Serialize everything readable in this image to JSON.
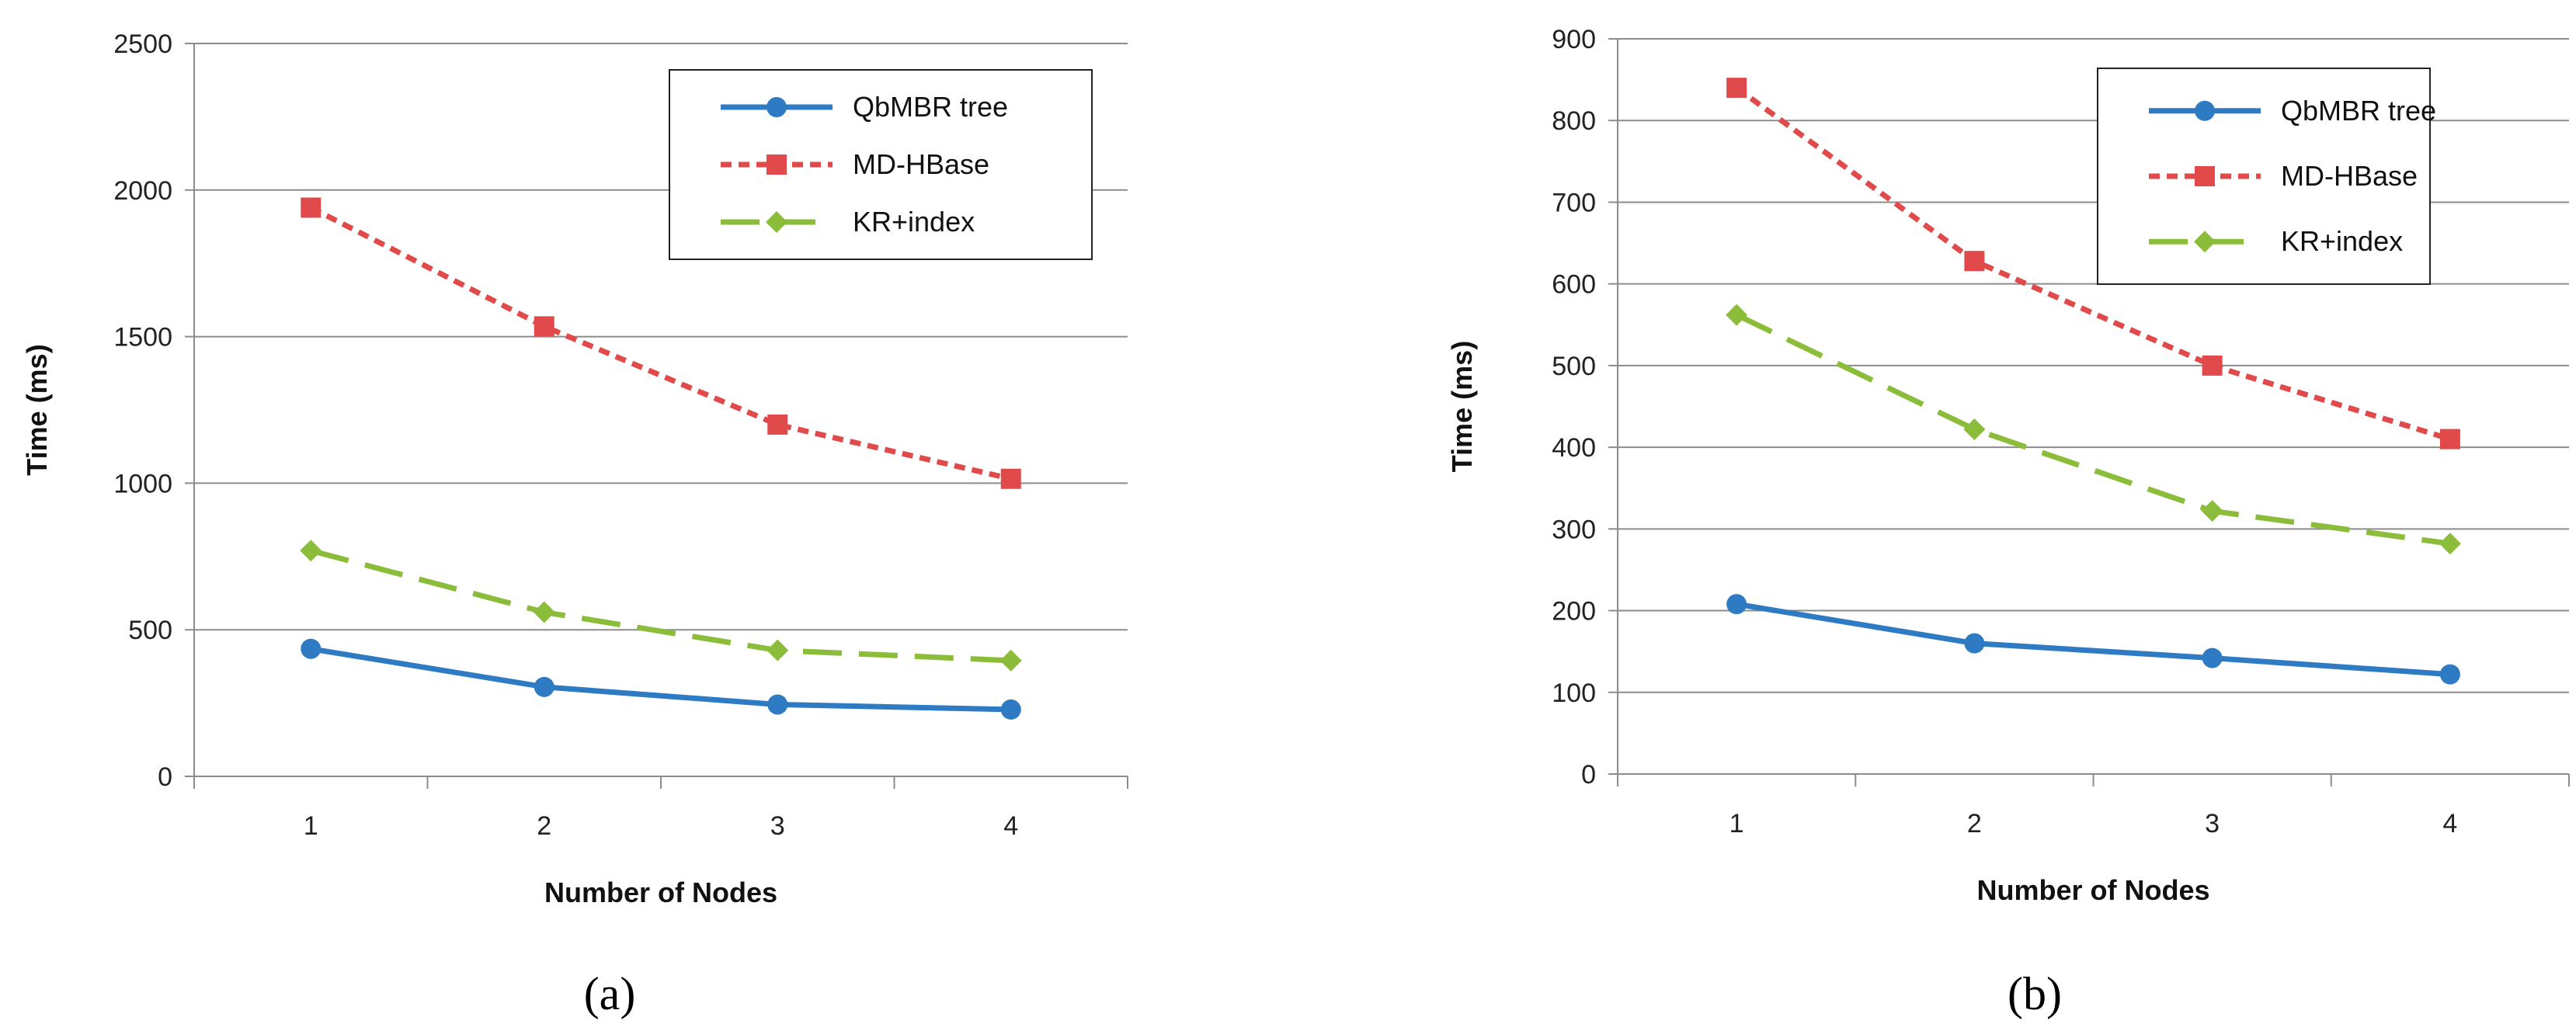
{
  "chart_data": [
    {
      "type": "line",
      "caption": "(a)",
      "caption_letter": "a",
      "categories": [
        "1",
        "2",
        "3",
        "4"
      ],
      "xlabel": "Number of Nodes",
      "ylabel": "Time (ms)",
      "ylim": [
        0,
        2500
      ],
      "yticks": [
        0,
        500,
        1000,
        1500,
        2000,
        2500
      ],
      "grid": true,
      "legend": "top-right",
      "series": [
        {
          "name": "QbMBR tree",
          "values": [
            435,
            305,
            245,
            228
          ],
          "color": "#2e7bc4",
          "dash": "solid",
          "marker": "circle"
        },
        {
          "name": "MD-HBase",
          "values": [
            1940,
            1535,
            1200,
            1015
          ],
          "color": "#e04a4a",
          "dash": "dotted",
          "marker": "square"
        },
        {
          "name": "KR+index",
          "values": [
            770,
            560,
            430,
            395
          ],
          "color": "#8bbd3a",
          "dash": "dashed",
          "marker": "diamond"
        }
      ]
    },
    {
      "type": "line",
      "caption": "(b)",
      "caption_letter": "b",
      "categories": [
        "1",
        "2",
        "3",
        "4"
      ],
      "xlabel": "Number of Nodes",
      "ylabel": "Time (ms)",
      "ylim": [
        0,
        900
      ],
      "yticks": [
        0,
        100,
        200,
        300,
        400,
        500,
        600,
        700,
        800,
        900
      ],
      "grid": true,
      "legend": "top-right",
      "series": [
        {
          "name": "QbMBR tree",
          "values": [
            208,
            160,
            142,
            122
          ],
          "color": "#2e7bc4",
          "dash": "solid",
          "marker": "circle"
        },
        {
          "name": "MD-HBase",
          "values": [
            840,
            628,
            500,
            410
          ],
          "color": "#e04a4a",
          "dash": "dotted",
          "marker": "square"
        },
        {
          "name": "KR+index",
          "values": [
            562,
            422,
            322,
            282
          ],
          "color": "#8bbd3a",
          "dash": "dashed",
          "marker": "diamond"
        }
      ]
    }
  ]
}
